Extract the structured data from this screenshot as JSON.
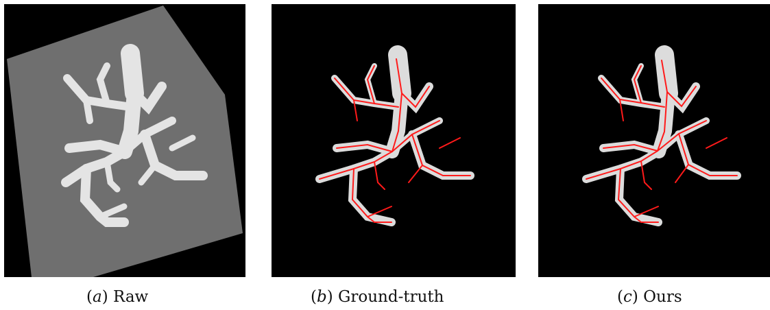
{
  "panels": [
    {
      "letter": "a",
      "label": "Raw"
    },
    {
      "letter": "b",
      "label": "Ground-truth"
    },
    {
      "letter": "c",
      "label": "Ours"
    }
  ],
  "colors": {
    "background": "#000000",
    "volume": "#6f6f6f",
    "vessel": "#e6e6e6",
    "centerline": "#ff1a1a"
  }
}
